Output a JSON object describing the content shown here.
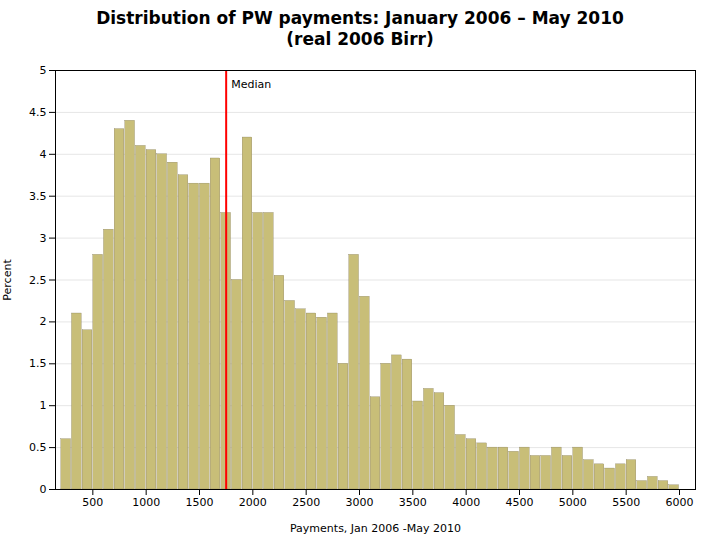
{
  "chart_data": {
    "type": "histogram",
    "title": "Distribution of PW payments: January 2006 – May 2010\n(real 2006 Birr)",
    "x_label": "Payments, Jan 2006 -May 2010",
    "y_label": "Percent",
    "bins": [
      200,
      300,
      400,
      500,
      600,
      700,
      800,
      900,
      1000,
      1100,
      1200,
      1300,
      1400,
      1500,
      1600,
      1700,
      1800,
      1900,
      2000,
      2100,
      2200,
      2300,
      2400,
      2500,
      2600,
      2700,
      2800,
      2900,
      3000,
      3100,
      3200,
      3300,
      3400,
      3500,
      3600,
      3700,
      3800,
      3900,
      4000,
      4100,
      4200,
      4300,
      4400,
      4500,
      4600,
      4700,
      4800,
      4900,
      5000,
      5100,
      5200,
      5300,
      5400,
      5500,
      5600,
      5700,
      5800,
      5900,
      6000
    ],
    "values": [
      0.6,
      2.1,
      1.9,
      2.8,
      3.1,
      4.3,
      4.4,
      4.1,
      4.05,
      4.0,
      3.9,
      3.75,
      3.65,
      3.65,
      3.95,
      3.3,
      2.5,
      4.2,
      3.3,
      3.3,
      2.55,
      2.25,
      2.15,
      2.1,
      2.05,
      2.1,
      1.5,
      2.8,
      2.3,
      1.1,
      1.5,
      1.6,
      1.55,
      1.05,
      1.2,
      1.15,
      1.0,
      0.65,
      0.6,
      0.55,
      0.5,
      0.5,
      0.45,
      0.5,
      0.4,
      0.4,
      0.5,
      0.4,
      0.5,
      0.35,
      0.3,
      0.25,
      0.3,
      0.35,
      0.1,
      0.15,
      0.1,
      0.05
    ],
    "color": "#C8BE78",
    "xlim": [
      150,
      6150
    ],
    "xticks": [
      500,
      1000,
      1500,
      2000,
      2500,
      3000,
      3500,
      4000,
      4500,
      5000,
      5500,
      6000
    ],
    "ylim": [
      0,
      5
    ],
    "yticks": [
      0,
      0.5,
      1,
      1.5,
      2,
      2.5,
      3,
      3.5,
      4,
      4.5,
      5
    ],
    "grid": true,
    "annotations": [
      {
        "type": "vline",
        "x": 1750,
        "label": "Median",
        "color": "#FF0000"
      }
    ]
  }
}
